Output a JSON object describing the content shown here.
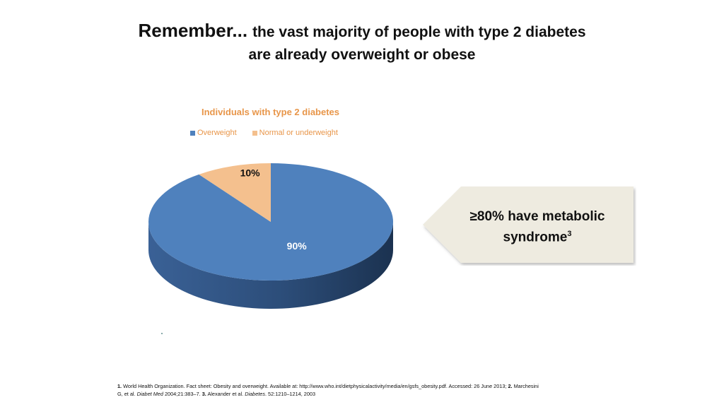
{
  "slide": {
    "title_lead": "Remember...",
    "title_rest": "the vast majority of people with type 2 diabetes",
    "title_line2": "are already overweight or obese"
  },
  "chart_data": {
    "type": "pie",
    "title": "Individuals with type 2 diabetes",
    "labels": [
      "Overweight",
      "Normal or underweight"
    ],
    "values": [
      90,
      10
    ],
    "data_labels": [
      "90%",
      "10%"
    ],
    "colors": [
      "#4f81bd",
      "#f4c08e"
    ],
    "legend_position": "top",
    "style": "3d"
  },
  "callout": {
    "text": "≥80% have metabolic syndrome",
    "text_main": "≥80% have metabolic",
    "text_line2": "syndrome",
    "superscript": "3"
  },
  "footnote": {
    "n1": "1.",
    "ref1": "World Health Organization. Fact sheet: Obesity and overweight. Available at: http://www.who.int/dietphysicalactivity/media/en/gsfs_obesity.pdf. Accessed: 26 June 2013;",
    "n2": "2.",
    "ref2_authors": "Marchesini G, et al.",
    "ref2_journal": "Diabet Med",
    "ref2_rest": "2004;21:383–7.",
    "n3": "3.",
    "ref3_authors": "Alexander et al.",
    "ref3_journal": "Diabetes",
    "ref3_rest": ". 52:1210–1214, 2003"
  }
}
